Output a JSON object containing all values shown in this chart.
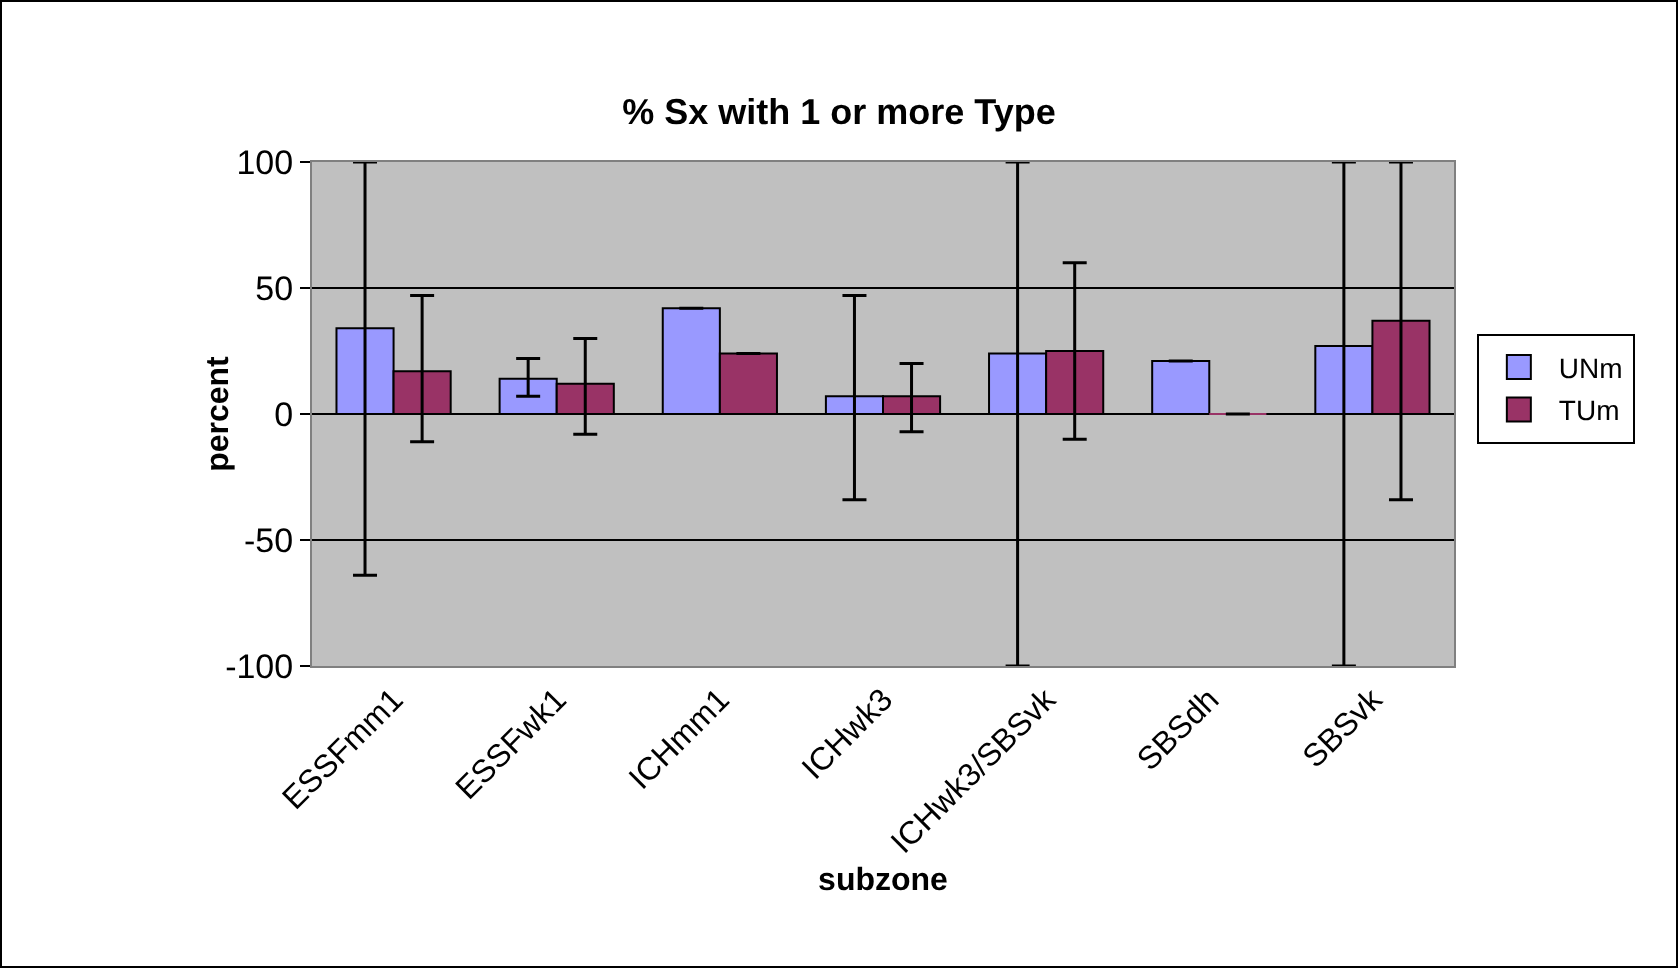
{
  "chart_data": {
    "type": "bar",
    "title": "% Sx with 1 or more Type",
    "xlabel": "subzone",
    "ylabel": "percent",
    "categories": [
      "ESSFmm1",
      "ESSFwk1",
      "ICHmm1",
      "ICHwk3",
      "ICHwk3/SBSvk",
      "SBSdh",
      "SBSvk"
    ],
    "series": [
      {
        "name": "UNm",
        "color": "#9999ff",
        "values": [
          34,
          14,
          42,
          7,
          24,
          21,
          27
        ],
        "errors": [
          [
            -64,
            100
          ],
          [
            7,
            22
          ],
          null,
          [
            -34,
            47
          ],
          [
            -100,
            100
          ],
          null,
          [
            -100,
            100
          ]
        ]
      },
      {
        "name": "TUm",
        "color": "#993366",
        "values": [
          17,
          12,
          24,
          7,
          25,
          0,
          37
        ],
        "errors": [
          [
            -11,
            47
          ],
          [
            -8,
            30
          ],
          null,
          [
            -7,
            20
          ],
          [
            -10,
            60
          ],
          null,
          [
            -34,
            100
          ]
        ]
      }
    ],
    "ylim": [
      -100,
      100
    ],
    "yticks": [
      -100,
      -50,
      0,
      50,
      100
    ],
    "grid": "y",
    "legend": "right"
  }
}
